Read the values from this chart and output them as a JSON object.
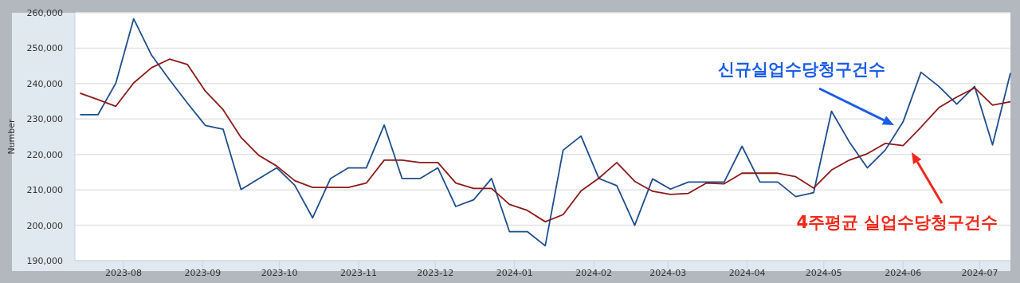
{
  "chart_data": {
    "type": "line",
    "ylabel": "Number",
    "x": [
      "2023-07-15",
      "2023-07-22",
      "2023-07-29",
      "2023-08-05",
      "2023-08-12",
      "2023-08-19",
      "2023-08-26",
      "2023-09-02",
      "2023-09-09",
      "2023-09-16",
      "2023-09-23",
      "2023-09-30",
      "2023-10-07",
      "2023-10-14",
      "2023-10-21",
      "2023-10-28",
      "2023-11-04",
      "2023-11-11",
      "2023-11-18",
      "2023-11-25",
      "2023-12-02",
      "2023-12-09",
      "2023-12-16",
      "2023-12-23",
      "2023-12-30",
      "2024-01-06",
      "2024-01-13",
      "2024-01-20",
      "2024-01-27",
      "2024-02-03",
      "2024-02-10",
      "2024-02-17",
      "2024-02-24",
      "2024-03-02",
      "2024-03-09",
      "2024-03-16",
      "2024-03-23",
      "2024-03-30",
      "2024-04-06",
      "2024-04-13",
      "2024-04-20",
      "2024-04-27",
      "2024-05-04",
      "2024-05-11",
      "2024-05-18",
      "2024-05-25",
      "2024-06-01",
      "2024-06-08",
      "2024-06-15",
      "2024-06-22",
      "2024-06-29",
      "2024-07-06",
      "2024-07-13"
    ],
    "series": [
      {
        "color": "#1f4e8c",
        "values": [
          231200,
          231200,
          240100,
          258300,
          248000,
          241100,
          234500,
          228200,
          227100,
          210100,
          213200,
          216200,
          211300,
          202100,
          213200,
          216200,
          216200,
          228300,
          213200,
          213200,
          216200,
          205300,
          207200,
          213200,
          198200,
          198200,
          194200,
          221200,
          225200,
          213200,
          211200,
          200000,
          213100,
          210200,
          212200,
          212200,
          212200,
          222300,
          212200,
          212200,
          208100,
          209200,
          232200,
          223500,
          216200,
          221200,
          229200,
          243200,
          239200,
          234200,
          239200,
          222700,
          243000
        ]
      },
      {
        "color": "#8b1a1a",
        "values": [
          237300,
          235500,
          233600,
          240200,
          244500,
          246900,
          245400,
          237900,
          232600,
          224800,
          219700,
          216700,
          212600,
          210700,
          210700,
          210700,
          211900,
          218400,
          218400,
          217700,
          217700,
          211900,
          210400,
          210400,
          205900,
          204200,
          201000,
          203000,
          209700,
          213300,
          217700,
          212400,
          209600,
          208700,
          209000,
          211900,
          211700,
          214700,
          214700,
          214700,
          213700,
          210500,
          215600,
          218400,
          220200,
          223100,
          222500,
          227700,
          233200,
          236200,
          238800,
          233900,
          234900
        ]
      }
    ],
    "xlim": [
      "2023-07-13",
      "2024-07-13"
    ],
    "xticks": [
      "2023-08",
      "2023-09",
      "2023-10",
      "2023-11",
      "2023-12",
      "2024-01",
      "2024-02",
      "2024-03",
      "2024-04",
      "2024-05",
      "2024-06",
      "2024-07"
    ],
    "ylim": [
      190000,
      260000
    ],
    "yticks": [
      {
        "value": 190000,
        "label": "190,000"
      },
      {
        "value": 200000,
        "label": "200,000"
      },
      {
        "value": 210000,
        "label": "210,000"
      },
      {
        "value": 220000,
        "label": "220,000"
      },
      {
        "value": 230000,
        "label": "230,000"
      },
      {
        "value": 240000,
        "label": "240,000"
      },
      {
        "value": 250000,
        "label": "250,000"
      },
      {
        "value": 260000,
        "label": "260,000"
      }
    ],
    "grid": "y",
    "marker": "none",
    "line_style": "solid",
    "annotations": [
      "신규실업수당청구건수",
      "4주평균 실업수당청구건수"
    ]
  }
}
